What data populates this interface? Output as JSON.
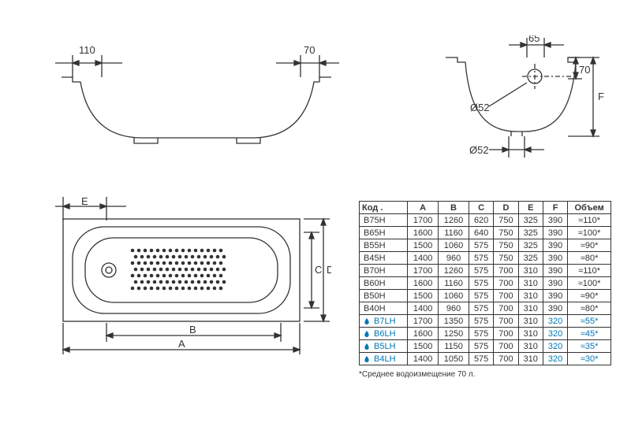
{
  "line_color": "#333333",
  "blue_color": "#0077b6",
  "stroke_width": 1.3,
  "side_view": {
    "dim110": "110",
    "dim70": "70"
  },
  "end_view": {
    "dim65": "65",
    "dim70": "70",
    "labelF": "F",
    "diam_top": "Ø52",
    "diam_bottom": "Ø52"
  },
  "plan_view": {
    "labelA": "A",
    "labelB": "B",
    "labelC": "C",
    "labelD": "D",
    "labelE": "E"
  },
  "table": {
    "columns": [
      "Код .",
      "A",
      "B",
      "C",
      "D",
      "E",
      "F",
      "Объем"
    ],
    "rows": [
      {
        "code": "B75H",
        "A": "1700",
        "B": "1260",
        "C": "620",
        "D": "750",
        "E": "325",
        "F": "390",
        "vol": "≈110*",
        "blue": false
      },
      {
        "code": "B65H",
        "A": "1600",
        "B": "1160",
        "C": "640",
        "D": "750",
        "E": "325",
        "F": "390",
        "vol": "≈100*",
        "blue": false
      },
      {
        "code": "B55H",
        "A": "1500",
        "B": "1060",
        "C": "575",
        "D": "750",
        "E": "325",
        "F": "390",
        "vol": "≈90*",
        "blue": false
      },
      {
        "code": "B45H",
        "A": "1400",
        "B": "960",
        "C": "575",
        "D": "750",
        "E": "325",
        "F": "390",
        "vol": "≈80*",
        "blue": false
      },
      {
        "code": "B70H",
        "A": "1700",
        "B": "1260",
        "C": "575",
        "D": "700",
        "E": "310",
        "F": "390",
        "vol": "≈110*",
        "blue": false
      },
      {
        "code": "B60H",
        "A": "1600",
        "B": "1160",
        "C": "575",
        "D": "700",
        "E": "310",
        "F": "390",
        "vol": "≈100*",
        "blue": false
      },
      {
        "code": "B50H",
        "A": "1500",
        "B": "1060",
        "C": "575",
        "D": "700",
        "E": "310",
        "F": "390",
        "vol": "≈90*",
        "blue": false
      },
      {
        "code": "B40H",
        "A": "1400",
        "B": "960",
        "C": "575",
        "D": "700",
        "E": "310",
        "F": "390",
        "vol": "≈80*",
        "blue": false
      },
      {
        "code": "B7LH",
        "A": "1700",
        "B": "1350",
        "C": "575",
        "D": "700",
        "E": "310",
        "F": "320",
        "vol": "≈55*",
        "blue": true
      },
      {
        "code": "B6LH",
        "A": "1600",
        "B": "1250",
        "C": "575",
        "D": "700",
        "E": "310",
        "F": "320",
        "vol": "≈45*",
        "blue": true
      },
      {
        "code": "B5LH",
        "A": "1500",
        "B": "1150",
        "C": "575",
        "D": "700",
        "E": "310",
        "F": "320",
        "vol": "≈35*",
        "blue": true
      },
      {
        "code": "B4LH",
        "A": "1400",
        "B": "1050",
        "C": "575",
        "D": "700",
        "E": "310",
        "F": "320",
        "vol": "≈30*",
        "blue": true
      }
    ]
  },
  "footnote": "*Среднее водоизмещение 70 л."
}
